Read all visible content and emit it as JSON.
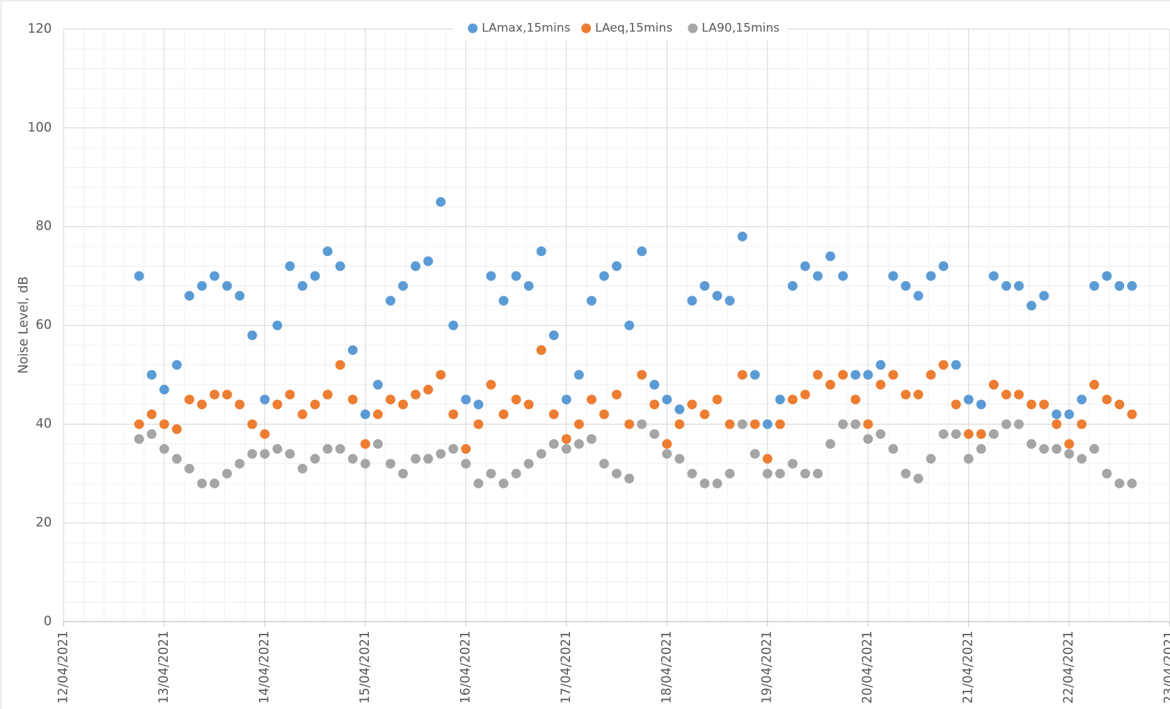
{
  "chart_data": {
    "type": "scatter",
    "ylabel": "Noise Level, dB",
    "x": [
      12.75,
      12.875,
      13,
      13.125,
      13.25,
      13.375,
      13.5,
      13.625,
      13.75,
      13.875,
      14,
      14.125,
      14.25,
      14.375,
      14.5,
      14.625,
      14.75,
      14.875,
      15,
      15.125,
      15.25,
      15.375,
      15.5,
      15.625,
      15.75,
      15.875,
      16,
      16.125,
      16.25,
      16.375,
      16.5,
      16.625,
      16.75,
      16.875,
      17,
      17.125,
      17.25,
      17.375,
      17.5,
      17.625,
      17.75,
      17.875,
      18,
      18.125,
      18.25,
      18.375,
      18.5,
      18.625,
      18.75,
      18.875,
      19,
      19.125,
      19.25,
      19.375,
      19.5,
      19.625,
      19.75,
      19.875,
      20,
      20.125,
      20.25,
      20.375,
      20.5,
      20.625,
      20.75,
      20.875,
      21,
      21.125,
      21.25,
      21.375,
      21.5,
      21.625,
      21.75,
      21.875,
      22,
      22.125,
      22.25,
      22.375,
      22.5,
      22.625
    ],
    "series": [
      {
        "name": "LAmax,15mins",
        "color": "#5b9bd5",
        "values": [
          70,
          50,
          47,
          52,
          66,
          68,
          70,
          68,
          66,
          58,
          45,
          60,
          72,
          68,
          70,
          75,
          72,
          55,
          42,
          48,
          65,
          68,
          72,
          73,
          85,
          60,
          45,
          44,
          70,
          65,
          70,
          68,
          75,
          58,
          45,
          50,
          65,
          70,
          72,
          60,
          75,
          48,
          45,
          43,
          65,
          68,
          66,
          65,
          78,
          50,
          40,
          45,
          68,
          72,
          70,
          74,
          70,
          50,
          50,
          52,
          70,
          68,
          66,
          70,
          72,
          52,
          45,
          44,
          70,
          68,
          68,
          64,
          66,
          42,
          42,
          45,
          68,
          70,
          68,
          68
        ]
      },
      {
        "name": "LAeq,15mins",
        "color": "#ed7d31",
        "values": [
          40,
          42,
          40,
          39,
          45,
          44,
          46,
          46,
          44,
          40,
          38,
          44,
          46,
          42,
          44,
          46,
          52,
          45,
          36,
          42,
          45,
          44,
          46,
          47,
          50,
          42,
          35,
          40,
          48,
          42,
          45,
          44,
          55,
          42,
          37,
          40,
          45,
          42,
          46,
          40,
          50,
          44,
          36,
          40,
          44,
          42,
          45,
          40,
          50,
          40,
          33,
          40,
          45,
          46,
          50,
          48,
          50,
          45,
          40,
          48,
          50,
          46,
          46,
          50,
          52,
          44,
          38,
          38,
          48,
          46,
          46,
          44,
          44,
          40,
          36,
          40,
          48,
          45,
          44,
          42
        ]
      },
      {
        "name": "LA90,15mins",
        "color": "#a5a5a5",
        "values": [
          37,
          38,
          35,
          33,
          31,
          28,
          28,
          30,
          32,
          34,
          34,
          35,
          34,
          31,
          33,
          35,
          35,
          33,
          32,
          36,
          32,
          30,
          33,
          33,
          34,
          35,
          32,
          28,
          30,
          28,
          30,
          32,
          34,
          36,
          35,
          36,
          37,
          32,
          30,
          29,
          40,
          38,
          34,
          33,
          30,
          28,
          28,
          30,
          40,
          34,
          30,
          30,
          32,
          30,
          30,
          36,
          40,
          40,
          37,
          38,
          35,
          30,
          29,
          33,
          38,
          38,
          33,
          35,
          38,
          40,
          40,
          36,
          35,
          35,
          34,
          33,
          35,
          30,
          28,
          28
        ]
      }
    ],
    "xlim": [
      12,
      23
    ],
    "xticks": [
      {
        "value": 12,
        "label": "12/04/2021"
      },
      {
        "value": 13,
        "label": "13/04/2021"
      },
      {
        "value": 14,
        "label": "14/04/2021"
      },
      {
        "value": 15,
        "label": "15/04/2021"
      },
      {
        "value": 16,
        "label": "16/04/2021"
      },
      {
        "value": 17,
        "label": "17/04/2021"
      },
      {
        "value": 18,
        "label": "18/04/2021"
      },
      {
        "value": 19,
        "label": "19/04/2021"
      },
      {
        "value": 20,
        "label": "20/04/2021"
      },
      {
        "value": 21,
        "label": "21/04/2021"
      },
      {
        "value": 22,
        "label": "22/04/2021"
      },
      {
        "value": 23,
        "label": "23/04/2021"
      }
    ],
    "ylim": [
      0,
      120
    ],
    "yticks": [
      0,
      20,
      40,
      60,
      80,
      100,
      120
    ],
    "grid": true,
    "legend": "top"
  }
}
